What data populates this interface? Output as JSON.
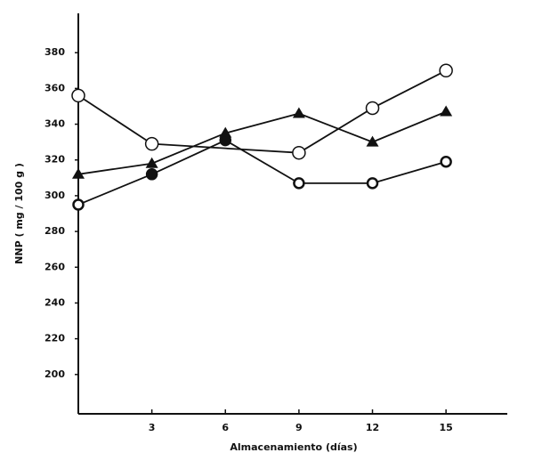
{
  "chart_data": {
    "type": "line",
    "x_label": "Almacenamiento (días)",
    "y_label": "NNP ( mg / 100 g )",
    "xlim": [
      0,
      17.5
    ],
    "xticks": [
      3,
      6,
      9,
      12,
      15
    ],
    "ylim": [
      178,
      402
    ],
    "yticks": [
      200,
      220,
      240,
      260,
      280,
      300,
      320,
      340,
      360,
      380
    ],
    "color": "#111111",
    "series": [
      {
        "marker": "open-circle",
        "x": [
          0,
          3,
          9,
          12,
          15
        ],
        "values": [
          356,
          329,
          324,
          349,
          370
        ]
      },
      {
        "marker": "triangle",
        "x": [
          0,
          3,
          6,
          9,
          12,
          15
        ],
        "values": [
          312,
          318,
          335,
          346,
          330,
          347
        ]
      },
      {
        "marker": "bold-circle",
        "x": [
          0,
          3,
          6,
          9,
          12,
          15
        ],
        "values": [
          295,
          312,
          331,
          307,
          307,
          319
        ],
        "filled": [
          false,
          true,
          true,
          false,
          false,
          false
        ]
      }
    ]
  }
}
